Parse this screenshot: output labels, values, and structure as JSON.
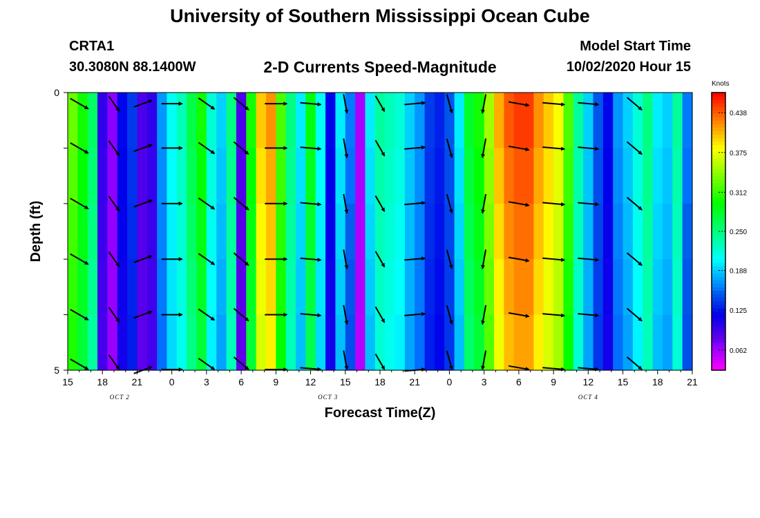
{
  "header": {
    "title": "University of Southern Mississippi Ocean Cube",
    "station": "CRTA1",
    "coords": "30.3080N 88.1400W",
    "chart_title": "2-D Currents Speed-Magnitude",
    "start_label": "Model Start Time",
    "start_value": "10/02/2020 Hour 15"
  },
  "footer": {
    "title": "University of Southern Mississippi Ocean Cube"
  },
  "chart_data": {
    "type": "heatmap",
    "title": "2-D Currents Speed-Magnitude",
    "xlabel": "Forecast Time(Z)",
    "ylabel": "Depth (ft)",
    "x_tick_labels": [
      "15",
      "18",
      "21",
      "0",
      "3",
      "6",
      "9",
      "12",
      "15",
      "18",
      "21",
      "0",
      "3",
      "6",
      "9",
      "12",
      "15",
      "18",
      "21"
    ],
    "x_hours": [
      15,
      69
    ],
    "date_labels": [
      {
        "text": "OCT 2",
        "hour": 19.5
      },
      {
        "text": "OCT 3",
        "hour": 37.5
      },
      {
        "text": "OCT 4",
        "hour": 60
      }
    ],
    "y_tick_labels": [
      "0",
      "5"
    ],
    "ylim": [
      0,
      5
    ],
    "colorbar": {
      "title": "Knots",
      "range": [
        0.03,
        0.47
      ],
      "ticks": [
        "0.438",
        "0.375",
        "0.312",
        "0.250",
        "0.188",
        "0.125",
        "0.062"
      ],
      "tick_values": [
        0.438,
        0.375,
        0.312,
        0.25,
        0.188,
        0.125,
        0.062
      ]
    },
    "speed_by_hour": [
      0.33,
      0.3,
      0.26,
      0.1,
      0.07,
      0.12,
      0.14,
      0.09,
      0.1,
      0.17,
      0.21,
      0.23,
      0.27,
      0.3,
      0.22,
      0.19,
      0.25,
      0.09,
      0.3,
      0.4,
      0.42,
      0.32,
      0.25,
      0.2,
      0.29,
      0.21,
      0.12,
      0.2,
      0.16,
      0.06,
      0.2,
      0.24,
      0.23,
      0.22,
      0.19,
      0.17,
      0.14,
      0.13,
      0.15,
      0.2,
      0.28,
      0.3,
      0.35,
      0.41,
      0.44,
      0.45,
      0.45,
      0.42,
      0.4,
      0.38,
      0.32,
      0.24,
      0.19,
      0.15,
      0.12,
      0.17,
      0.19,
      0.22,
      0.25,
      0.2,
      0.19,
      0.24,
      0.16
    ],
    "depth_rows": 5,
    "arrow_depths": [
      0.2,
      1.0,
      2.0,
      3.0,
      4.0,
      5.0
    ],
    "arrows": [
      {
        "hour": 16,
        "angle": 30,
        "length": 30
      },
      {
        "hour": 19,
        "angle": 55,
        "length": 26
      },
      {
        "hour": 21.5,
        "angle": -20,
        "length": 28
      },
      {
        "hour": 24,
        "angle": 0,
        "length": 30
      },
      {
        "hour": 27,
        "angle": 35,
        "length": 28
      },
      {
        "hour": 30,
        "angle": 40,
        "length": 28
      },
      {
        "hour": 33,
        "angle": 0,
        "length": 32
      },
      {
        "hour": 36,
        "angle": 5,
        "length": 30
      },
      {
        "hour": 39,
        "angle": 80,
        "length": 28
      },
      {
        "hour": 42,
        "angle": 60,
        "length": 26
      },
      {
        "hour": 45,
        "angle": -5,
        "length": 30
      },
      {
        "hour": 48,
        "angle": 75,
        "length": 28
      },
      {
        "hour": 51,
        "angle": 100,
        "length": 28
      },
      {
        "hour": 54,
        "angle": 10,
        "length": 30
      },
      {
        "hour": 57,
        "angle": 5,
        "length": 32
      },
      {
        "hour": 60,
        "angle": 5,
        "length": 30
      },
      {
        "hour": 64,
        "angle": 40,
        "length": 28
      }
    ]
  }
}
